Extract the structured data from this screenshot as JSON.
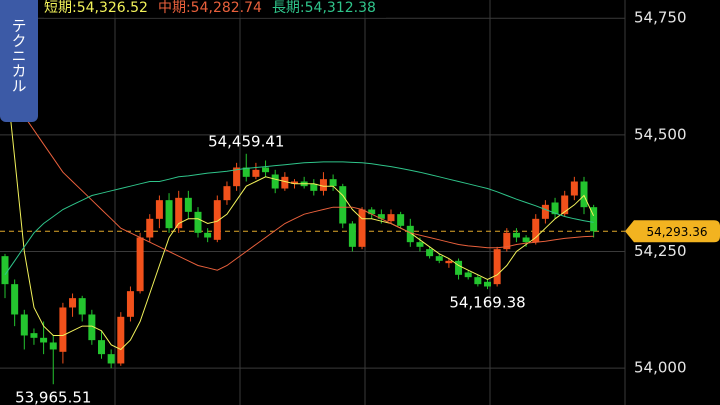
{
  "side_tab": "テクニカル",
  "chart_data": {
    "type": "candlestick",
    "up_color": "#f1511b",
    "down_color": "#24c52f",
    "open": [
      54240,
      54180,
      54115,
      54075,
      54065,
      54055,
      54035,
      54130,
      54150,
      54115,
      54060,
      54030,
      54010,
      54110,
      54165,
      54280,
      54320,
      54360,
      54300,
      54365,
      54335,
      54290,
      54275,
      54360,
      54390,
      54430,
      54410,
      54430,
      54415,
      54385,
      54395,
      54400,
      54395,
      54380,
      54405,
      54390,
      54310,
      54260,
      54340,
      54330,
      54315,
      54330,
      54305,
      54270,
      54255,
      54240,
      54225,
      54230,
      54205,
      54195,
      54185,
      54180,
      54255,
      54290,
      54280,
      54270,
      54320,
      54355,
      54330,
      54370,
      54400,
      54345
    ],
    "high": [
      54245,
      54190,
      54125,
      54085,
      54100,
      54070,
      54140,
      54160,
      54155,
      54125,
      54080,
      54040,
      54120,
      54175,
      54290,
      54330,
      54370,
      54375,
      54380,
      54380,
      54345,
      54300,
      54370,
      54400,
      54440,
      54459.41,
      54440,
      54445,
      54425,
      54420,
      54405,
      54410,
      54405,
      54420,
      54415,
      54395,
      54315,
      54345,
      54345,
      54340,
      54340,
      54335,
      54320,
      54280,
      54260,
      54245,
      54235,
      54235,
      54210,
      54200,
      54190,
      54260,
      54300,
      54300,
      54285,
      54330,
      54360,
      54365,
      54380,
      54410,
      54410,
      54350
    ],
    "low": [
      54150,
      54090,
      54040,
      54050,
      54030,
      53965.51,
      54010,
      54110,
      54100,
      54050,
      54020,
      54000,
      54005,
      54100,
      54160,
      54270,
      54300,
      54290,
      54290,
      54320,
      54280,
      54270,
      54270,
      54350,
      54380,
      54400,
      54405,
      54410,
      54375,
      54380,
      54385,
      54385,
      54370,
      54370,
      54380,
      54300,
      54250,
      54255,
      54320,
      54310,
      54310,
      54300,
      54260,
      54250,
      54235,
      54225,
      54215,
      54190,
      54190,
      54175,
      54169.38,
      54175,
      54250,
      54270,
      54260,
      54265,
      54310,
      54320,
      54325,
      54360,
      54330,
      54280
    ],
    "close": [
      54180,
      54115,
      54070,
      54065,
      54055,
      54040,
      54130,
      54150,
      54115,
      54060,
      54030,
      54010,
      54110,
      54165,
      54280,
      54320,
      54360,
      54300,
      54365,
      54335,
      54290,
      54280,
      54360,
      54390,
      54430,
      54410,
      54425,
      54420,
      54385,
      54410,
      54400,
      54390,
      54380,
      54405,
      54390,
      54310,
      54260,
      54340,
      54330,
      54320,
      54330,
      54305,
      54270,
      54260,
      54240,
      54230,
      54230,
      54200,
      54195,
      54180,
      54175,
      54255,
      54290,
      54280,
      54270,
      54320,
      54350,
      54330,
      54370,
      54400,
      54345,
      54293.36
    ],
    "series": [
      {
        "name": "短期",
        "legend": "短期:54,326.52",
        "color": "#f2f25a",
        "values": [
          54650,
          54450,
          54250,
          54130,
          54090,
          54070,
          54070,
          54080,
          54090,
          54090,
          54080,
          54050,
          54040,
          54060,
          54100,
          54160,
          54220,
          54280,
          54310,
          54320,
          54320,
          54310,
          54315,
          54330,
          54360,
          54390,
          54400,
          54410,
          54405,
          54400,
          54395,
          54395,
          54395,
          54390,
          54390,
          54370,
          54340,
          54320,
          54320,
          54315,
          54310,
          54300,
          54290,
          54275,
          54260,
          54245,
          54235,
          54220,
          54210,
          54200,
          54190,
          54200,
          54220,
          54250,
          54265,
          54280,
          54300,
          54320,
          54335,
          54350,
          54370,
          54326.52
        ]
      },
      {
        "name": "中期",
        "legend": "中期:54,282.74",
        "color": "#e8603c",
        "values": [
          54600,
          54570,
          54540,
          54510,
          54480,
          54450,
          54420,
          54400,
          54380,
          54360,
          54340,
          54320,
          54300,
          54290,
          54280,
          54270,
          54260,
          54250,
          54240,
          54230,
          54220,
          54215,
          54210,
          54220,
          54235,
          54250,
          54265,
          54280,
          54295,
          54310,
          54320,
          54330,
          54335,
          54340,
          54345,
          54345,
          54345,
          54340,
          54330,
          54320,
          54310,
          54300,
          54290,
          54285,
          54280,
          54275,
          54270,
          54265,
          54262,
          54260,
          54258,
          54258,
          54260,
          54265,
          54268,
          54270,
          54272,
          54275,
          54278,
          54280,
          54282,
          54282.74
        ]
      },
      {
        "name": "長期",
        "legend": "長期:54,312.38",
        "color": "#2fc48a",
        "values": [
          54200,
          54230,
          54260,
          54290,
          54310,
          54325,
          54340,
          54350,
          54360,
          54370,
          54375,
          54380,
          54385,
          54390,
          54395,
          54400,
          54400,
          54405,
          54410,
          54412,
          54415,
          54418,
          54420,
          54422,
          54425,
          54428,
          54430,
          54432,
          54434,
          54436,
          54438,
          54440,
          54441,
          54442,
          54442,
          54442,
          54441,
          54440,
          54438,
          54435,
          54432,
          54428,
          54424,
          54420,
          54415,
          54410,
          54405,
          54400,
          54395,
          54390,
          54385,
          54378,
          54370,
          54362,
          54355,
          54348,
          54340,
          54332,
          54325,
          54320,
          54316,
          54312.38
        ]
      }
    ],
    "ylim": [
      53921,
      54789
    ],
    "yticks": [
      {
        "value": 54000,
        "label": "54,000"
      },
      {
        "value": 54250,
        "label": "54,250"
      },
      {
        "value": 54500,
        "label": "54,500"
      },
      {
        "value": 54750,
        "label": "54,750"
      }
    ],
    "grid": true,
    "current_price": {
      "value": 54293.36,
      "label": "54,293.36"
    },
    "annotations": [
      {
        "value": 54459.41,
        "label": "54,459.41"
      },
      {
        "value": 54169.38,
        "label": "54,169.38"
      },
      {
        "value": 53965.51,
        "label": "53,965.51"
      }
    ]
  }
}
